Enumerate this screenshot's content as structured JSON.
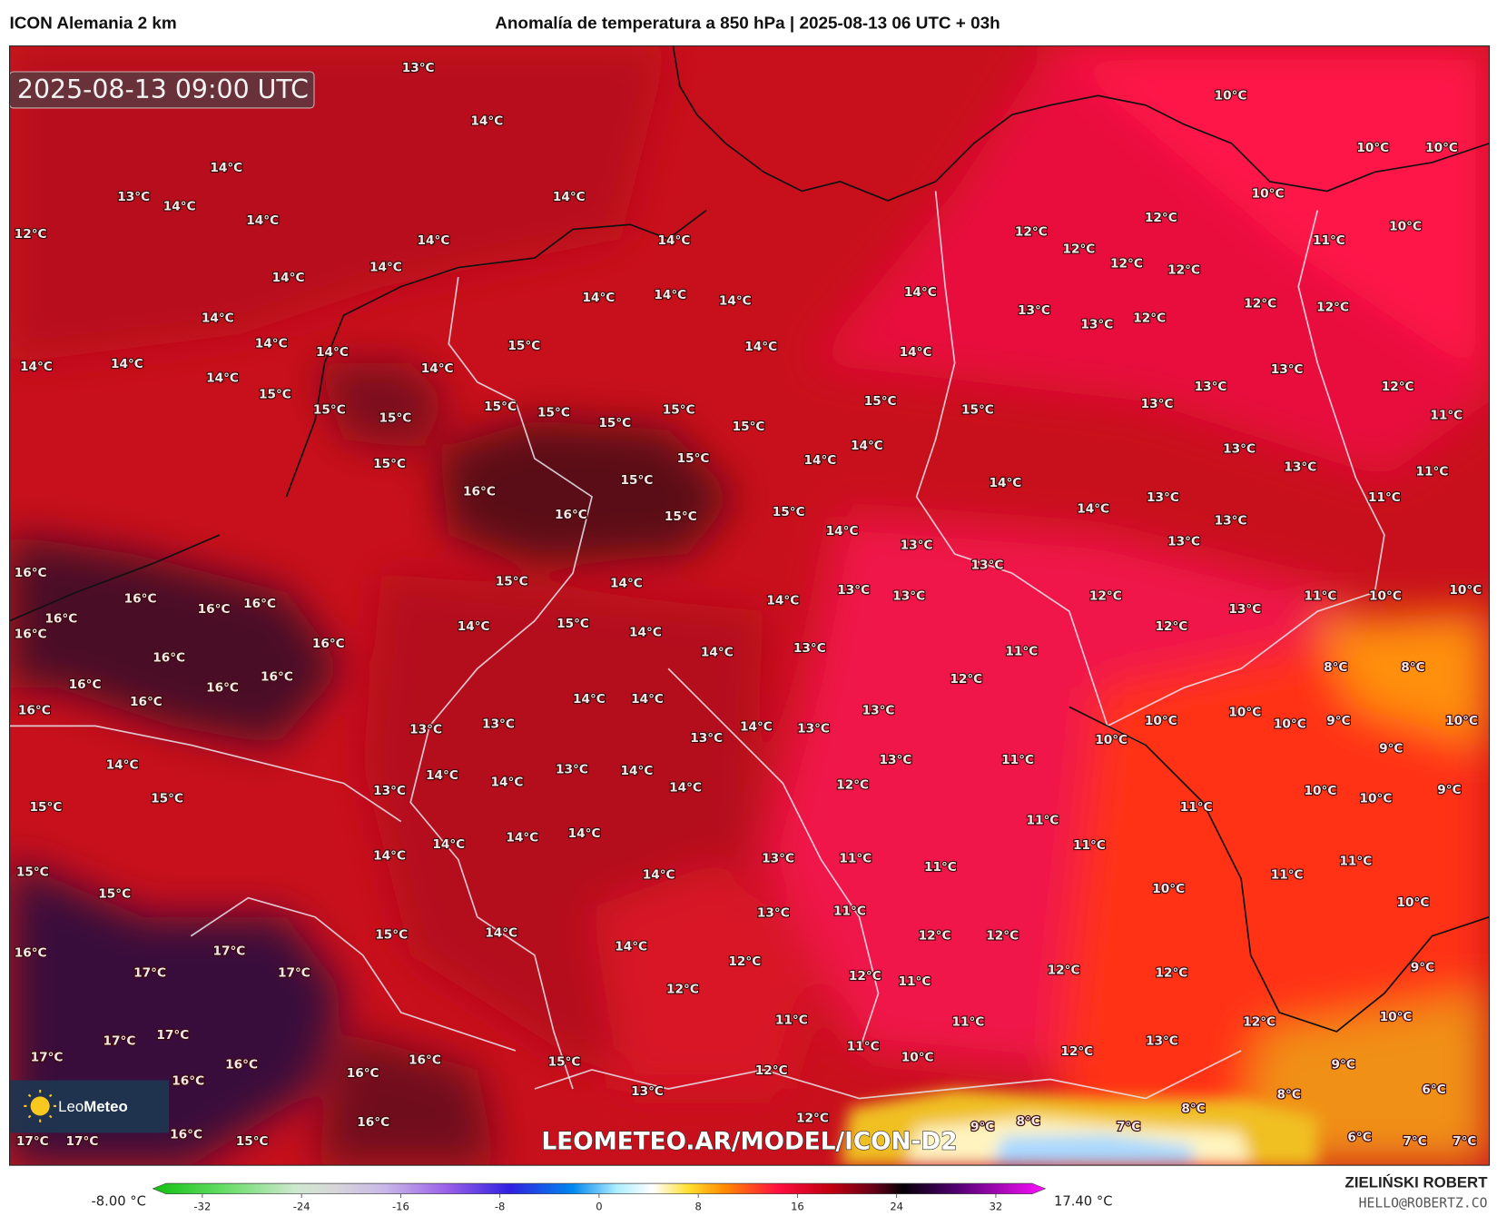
{
  "header": {
    "model": "ICON Alemania 2 km",
    "title": "Anomalía de temperatura a 850 hPa | 2025-08-13 06 UTC + 03h"
  },
  "map": {
    "valid_time": "2025-08-13 09:00 UTC",
    "watermark": "LEOMETEO.AR/MODEL/ICON-D2",
    "logo_light": "Leo",
    "logo_bold": "Meteo",
    "labels": [
      "13°C",
      "14°C",
      "14°C",
      "13°C",
      "14°C",
      "14°C",
      "12°C",
      "14°C",
      "14°C",
      "14°C",
      "14°C",
      "14°C",
      "14°C",
      "14°C",
      "14°C",
      "14°C",
      "14°C",
      "15°C",
      "15°C",
      "15°C",
      "14°C",
      "15°C",
      "14°C",
      "14°C",
      "14°C",
      "14°C",
      "14°C",
      "14°C",
      "14°C",
      "15°C",
      "15°C",
      "15°C",
      "15°C",
      "15°C",
      "15°C",
      "15°C",
      "14°C",
      "14°C",
      "15°C",
      "15°C",
      "15°C",
      "16°C",
      "16°C",
      "15°C",
      "15°C",
      "14°C",
      "14°C",
      "14°C",
      "13°C",
      "13°C",
      "13°C",
      "13°C",
      "14°C",
      "14°C",
      "15°C",
      "15°C",
      "14°C",
      "14°C",
      "14°C",
      "13°C",
      "12°C",
      "11°C",
      "12°C",
      "12°C",
      "13°C",
      "11°C",
      "10°C",
      "10°C",
      "8°C",
      "8°C",
      "16°C",
      "16°C",
      "16°C",
      "16°C",
      "16°C",
      "16°C",
      "16°C",
      "16°C",
      "16°C",
      "16°C",
      "16°C",
      "16°C",
      "16°C",
      "14°C",
      "15°C",
      "15°C",
      "13°C",
      "13°C",
      "14°C",
      "14°C",
      "13°C",
      "14°C",
      "13°C",
      "13°C",
      "13°C",
      "11°C",
      "12°C",
      "13°C",
      "14°C",
      "14°C",
      "14°C",
      "13°C",
      "14°C",
      "15°C",
      "15°C",
      "14°C",
      "14°C",
      "14°C",
      "14°C",
      "14°C",
      "13°C",
      "11°C",
      "11°C",
      "11°C",
      "11°C",
      "10°C",
      "10°C",
      "10°C",
      "10°C",
      "9°C",
      "9°C",
      "10°C",
      "10°C",
      "10°C",
      "9°C",
      "11°C",
      "11°C",
      "11°C",
      "10°C",
      "10°C",
      "16°C",
      "15°C",
      "14°C",
      "14°C",
      "13°C",
      "11°C",
      "12°C",
      "12°C",
      "17°C",
      "17°C",
      "17°C",
      "12°C",
      "12°C",
      "12°C",
      "11°C",
      "12°C",
      "12°C",
      "9°C",
      "10°C",
      "12°C",
      "17°C",
      "17°C",
      "17°C",
      "16°C",
      "16°C",
      "16°C",
      "16°C",
      "11°C",
      "11°C",
      "11°C",
      "10°C",
      "13°C",
      "12°C",
      "9°C",
      "15°C",
      "12°C",
      "13°C",
      "12°C",
      "8°C",
      "6°C",
      "8°C",
      "16°C",
      "16°C",
      "15°C",
      "17°C",
      "17°C",
      "10°C",
      "10°C",
      "10°C",
      "10°C",
      "12°C",
      "12°C",
      "12°C",
      "10°C",
      "11°C",
      "12°C",
      "12°C",
      "12°C",
      "12°C",
      "13°C",
      "13°C",
      "12°C",
      "13°C",
      "12°C",
      "13°C",
      "13°C",
      "11°C",
      "13°C",
      "13°C",
      "11°C",
      "13°C",
      "11°C",
      "13°C",
      "13°C",
      "8°C",
      "9°C",
      "7°C",
      "6°C",
      "7°C",
      "7°C"
    ]
  },
  "colorbar": {
    "min_label": "-8.00 °C",
    "max_label": "17.40 °C",
    "range": [
      -36,
      36
    ],
    "ticks": [
      -32,
      -24,
      -16,
      -8,
      0,
      8,
      16,
      24,
      32
    ]
  },
  "footer": {
    "author": "ZIELIŃSKI ROBERT",
    "email": "HELLO@ROBERTZ.CO"
  }
}
